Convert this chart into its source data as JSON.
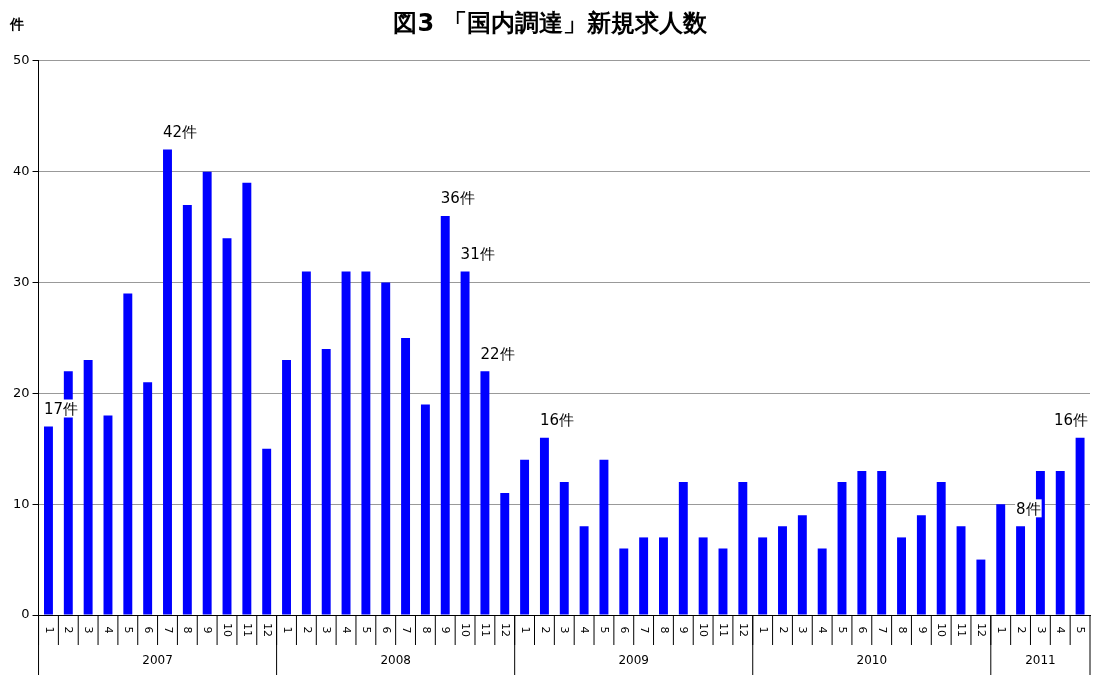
{
  "chart_data": {
    "type": "bar",
    "title": "図3 「国内調達」新規求人数",
    "ylabel": "件",
    "categories": [
      "1",
      "2",
      "3",
      "4",
      "5",
      "6",
      "7",
      "8",
      "9",
      "10",
      "11",
      "12",
      "1",
      "2",
      "3",
      "4",
      "5",
      "6",
      "7",
      "8",
      "9",
      "10",
      "11",
      "12",
      "1",
      "2",
      "3",
      "4",
      "5",
      "6",
      "7",
      "8",
      "9",
      "10",
      "11",
      "12",
      "1",
      "2",
      "3",
      "4",
      "5",
      "6",
      "7",
      "8",
      "9",
      "10",
      "11",
      "12",
      "1",
      "2",
      "3",
      "4",
      "5"
    ],
    "annotations": [
      "2007",
      "2008",
      "2009",
      "2010",
      "2011"
    ],
    "values": [
      17,
      22,
      23,
      18,
      29,
      21,
      42,
      37,
      40,
      34,
      39,
      15,
      23,
      31,
      24,
      31,
      31,
      30,
      25,
      19,
      36,
      31,
      22,
      11,
      14,
      16,
      12,
      8,
      14,
      6,
      7,
      7,
      12,
      7,
      6,
      12,
      7,
      8,
      9,
      6,
      12,
      13,
      13,
      7,
      9,
      12,
      8,
      5,
      10,
      8,
      13,
      13,
      16
    ],
    "value_labels": [
      "17件",
      null,
      null,
      null,
      null,
      null,
      "42件",
      null,
      null,
      null,
      null,
      null,
      null,
      null,
      null,
      null,
      null,
      null,
      null,
      null,
      "36件",
      "31件",
      "22件",
      null,
      null,
      "16件",
      null,
      null,
      null,
      null,
      null,
      null,
      null,
      null,
      null,
      null,
      null,
      null,
      null,
      null,
      null,
      null,
      null,
      null,
      null,
      null,
      null,
      null,
      null,
      "8件",
      null,
      null,
      "16件"
    ],
    "color": "#0000ff",
    "ylim": [
      0,
      50
    ],
    "yticks": [
      0,
      10,
      20,
      30,
      40,
      50
    ],
    "grid": "y",
    "legend": false
  }
}
